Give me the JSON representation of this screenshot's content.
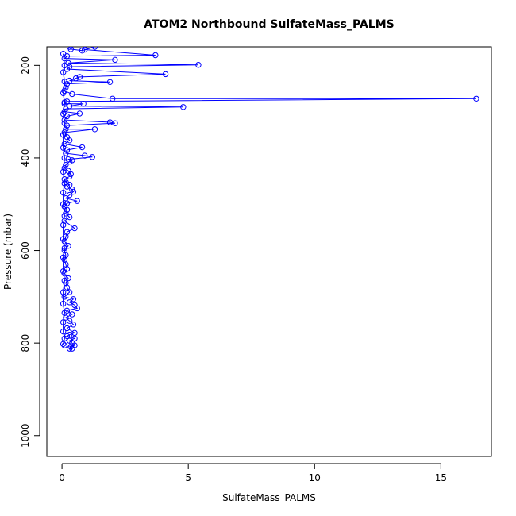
{
  "chart_data": {
    "type": "line",
    "title": "ATOM2 Northbound SulfateMass_PALMS",
    "xlabel": "SulfateMass_PALMS",
    "ylabel": "Pressure (mbar)",
    "xlim": [
      -0.6,
      17.0
    ],
    "ylim": [
      1045,
      160
    ],
    "y_reversed": true,
    "x_ticks": [
      0,
      5,
      10,
      15
    ],
    "y_ticks": [
      200,
      400,
      600,
      800,
      1000
    ],
    "grid": false,
    "marker": "open-circle",
    "color": "#0000ff",
    "series": [
      {
        "values": [
          [
            0.3,
            160
          ],
          [
            0.35,
            165
          ],
          [
            0.8,
            168
          ],
          [
            1.3,
            160
          ],
          [
            0.9,
            166
          ],
          [
            3.7,
            178
          ],
          [
            0.2,
            180
          ],
          [
            0.1,
            185
          ],
          [
            2.1,
            188
          ],
          [
            0.25,
            195
          ],
          [
            5.4,
            199
          ],
          [
            0.3,
            203
          ],
          [
            0.2,
            208
          ],
          [
            4.1,
            219
          ],
          [
            0.7,
            225
          ],
          [
            0.55,
            228
          ],
          [
            0.3,
            233
          ],
          [
            1.9,
            236
          ],
          [
            0.2,
            240
          ],
          [
            0.15,
            248
          ],
          [
            0.1,
            255
          ],
          [
            0.4,
            262
          ],
          [
            2.0,
            272
          ],
          [
            16.4,
            272
          ],
          [
            0.2,
            278
          ],
          [
            0.1,
            283
          ],
          [
            0.85,
            283
          ],
          [
            0.3,
            288
          ],
          [
            4.8,
            290
          ],
          [
            0.15,
            294
          ],
          [
            0.1,
            300
          ],
          [
            0.7,
            304
          ],
          [
            0.2,
            310
          ],
          [
            0.1,
            318
          ],
          [
            1.9,
            323
          ],
          [
            2.1,
            325
          ],
          [
            0.2,
            330
          ],
          [
            0.15,
            338
          ],
          [
            1.3,
            338
          ],
          [
            0.1,
            345
          ],
          [
            0.2,
            355
          ],
          [
            0.3,
            362
          ],
          [
            0.1,
            370
          ],
          [
            0.8,
            377
          ],
          [
            0.2,
            383
          ],
          [
            0.15,
            390
          ],
          [
            0.9,
            395
          ],
          [
            1.2,
            398
          ],
          [
            0.25,
            403
          ],
          [
            0.4,
            405
          ],
          [
            0.3,
            408
          ],
          [
            0.15,
            415
          ],
          [
            0.1,
            422
          ],
          [
            0.25,
            428
          ],
          [
            0.35,
            435
          ],
          [
            0.3,
            440
          ],
          [
            0.1,
            446
          ],
          [
            0.15,
            452
          ],
          [
            0.3,
            458
          ],
          [
            0.2,
            462
          ],
          [
            0.4,
            468
          ],
          [
            0.45,
            473
          ],
          [
            0.3,
            480
          ],
          [
            0.15,
            487
          ],
          [
            0.6,
            493
          ],
          [
            0.2,
            498
          ],
          [
            0.1,
            505
          ],
          [
            0.2,
            512
          ],
          [
            0.15,
            520
          ],
          [
            0.3,
            528
          ],
          [
            0.1,
            536
          ],
          [
            0.5,
            552
          ],
          [
            0.2,
            560
          ],
          [
            0.15,
            570
          ],
          [
            0.1,
            580
          ],
          [
            0.25,
            590
          ],
          [
            0.1,
            600
          ],
          [
            0.15,
            610
          ],
          [
            0.1,
            620
          ],
          [
            0.15,
            630
          ],
          [
            0.2,
            640
          ],
          [
            0.1,
            650
          ],
          [
            0.25,
            660
          ],
          [
            0.15,
            670
          ],
          [
            0.2,
            680
          ],
          [
            0.3,
            690
          ],
          [
            0.1,
            700
          ],
          [
            0.45,
            705
          ],
          [
            0.3,
            712
          ],
          [
            0.5,
            718
          ],
          [
            0.6,
            725
          ],
          [
            0.2,
            730
          ],
          [
            0.4,
            738
          ],
          [
            0.15,
            745
          ],
          [
            0.3,
            752
          ],
          [
            0.45,
            760
          ],
          [
            0.2,
            768
          ],
          [
            0.5,
            778
          ],
          [
            0.3,
            782
          ],
          [
            0.2,
            785
          ],
          [
            0.5,
            790
          ],
          [
            0.3,
            795
          ],
          [
            0.4,
            800
          ],
          [
            0.5,
            805
          ],
          [
            0.35,
            808
          ],
          [
            0.3,
            812
          ],
          [
            0.4,
            812
          ]
        ]
      }
    ],
    "dense_cluster_values": [
      [
        0.05,
        175
      ],
      [
        0.1,
        200
      ],
      [
        0.05,
        215
      ],
      [
        0.1,
        235
      ],
      [
        0.05,
        260
      ],
      [
        0.1,
        280
      ],
      [
        0.05,
        305
      ],
      [
        0.1,
        325
      ],
      [
        0.05,
        350
      ],
      [
        0.05,
        378
      ],
      [
        0.1,
        400
      ],
      [
        0.05,
        430
      ],
      [
        0.1,
        455
      ],
      [
        0.05,
        475
      ],
      [
        0.05,
        500
      ],
      [
        0.1,
        525
      ],
      [
        0.05,
        545
      ],
      [
        0.05,
        575
      ],
      [
        0.1,
        595
      ],
      [
        0.05,
        615
      ],
      [
        0.05,
        645
      ],
      [
        0.1,
        665
      ],
      [
        0.05,
        690
      ],
      [
        0.05,
        715
      ],
      [
        0.1,
        735
      ],
      [
        0.05,
        755
      ],
      [
        0.05,
        775
      ],
      [
        0.1,
        790
      ],
      [
        0.05,
        802
      ],
      [
        0.1,
        805
      ]
    ]
  }
}
